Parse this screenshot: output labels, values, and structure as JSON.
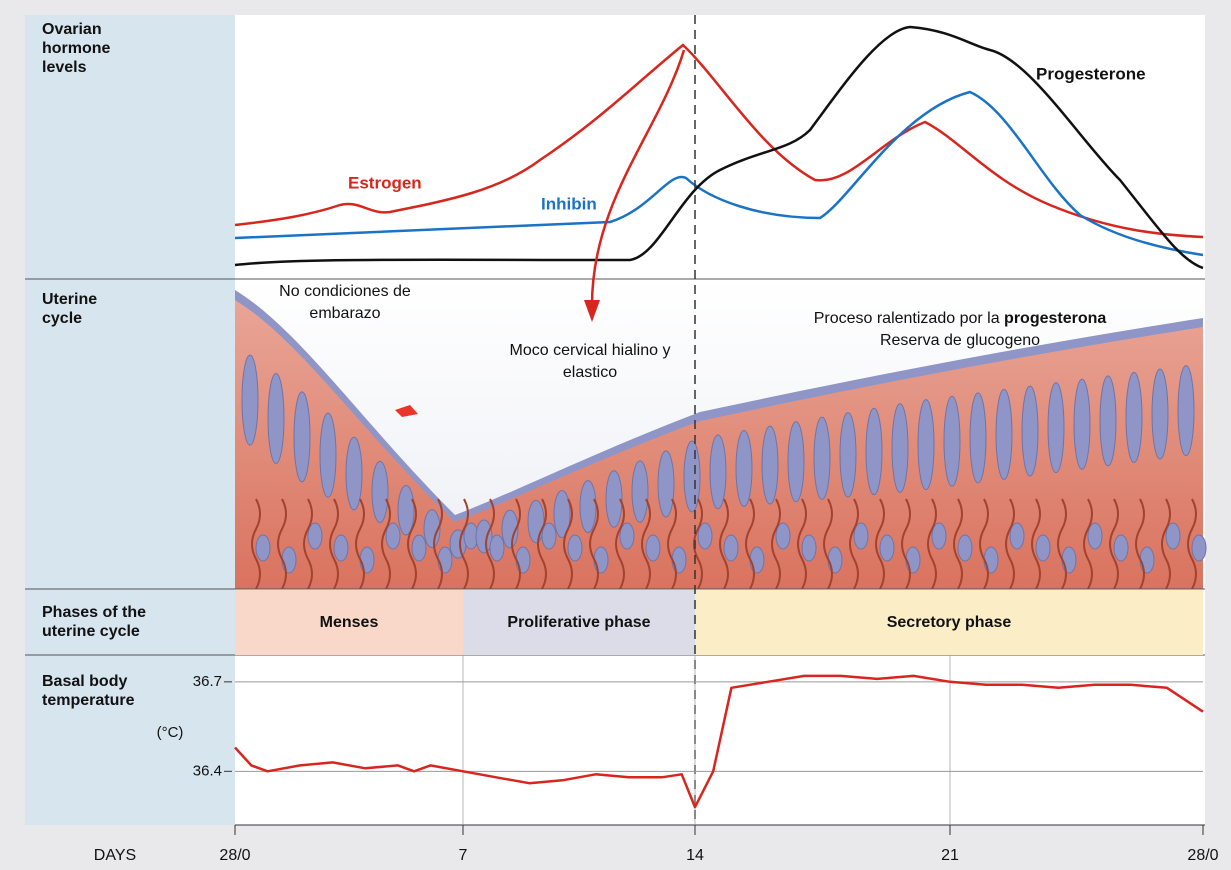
{
  "row_labels": {
    "hormones": "Ovarian hormone levels",
    "uterine": "Uterine cycle",
    "phases": "Phases of the uterine cycle",
    "temperature": "Basal body temperature",
    "unit": "(°C)"
  },
  "hormones": {
    "estrogen": "Estrogen",
    "inhibin": "Inhibin",
    "progesterone": "Progesterone"
  },
  "annotations": {
    "no_pregnancy": "No condiciones de embarazo",
    "mucus": "Moco cervical hialino y elastico",
    "slowed": "Proceso ralentizado por la",
    "slowed_bold": "progesterona",
    "glycogen": "Reserva de glucogeno"
  },
  "phases": [
    "Menses",
    "Proliferative phase",
    "Secretory phase"
  ],
  "chart_data": {
    "type": "line",
    "x_label": "DAYS",
    "x": [
      0,
      0.5,
      1,
      2,
      3,
      4,
      5,
      5.5,
      6,
      7,
      8,
      9,
      10,
      11,
      12,
      13,
      13.6,
      14,
      14.5,
      15,
      16,
      17,
      18,
      19,
      20,
      21,
      22,
      23,
      24,
      25,
      26,
      27,
      28
    ],
    "values": [
      36.48,
      36.42,
      36.4,
      36.42,
      36.43,
      36.41,
      36.42,
      36.4,
      36.42,
      36.4,
      36.38,
      36.36,
      36.37,
      36.39,
      36.38,
      36.38,
      36.39,
      36.28,
      36.4,
      36.68,
      36.7,
      36.72,
      36.72,
      36.71,
      36.72,
      36.7,
      36.69,
      36.69,
      36.68,
      36.69,
      36.69,
      36.68,
      36.6
    ],
    "color": "#d7261e",
    "xlim": [
      0,
      28
    ],
    "xticks": [
      {
        "value": 0,
        "label": "28/0"
      },
      7,
      14,
      21,
      {
        "value": 28,
        "label": "28/0"
      }
    ],
    "ylim": [
      36.22,
      36.79
    ],
    "yticks": [
      36.4,
      36.7
    ],
    "grid": true
  }
}
